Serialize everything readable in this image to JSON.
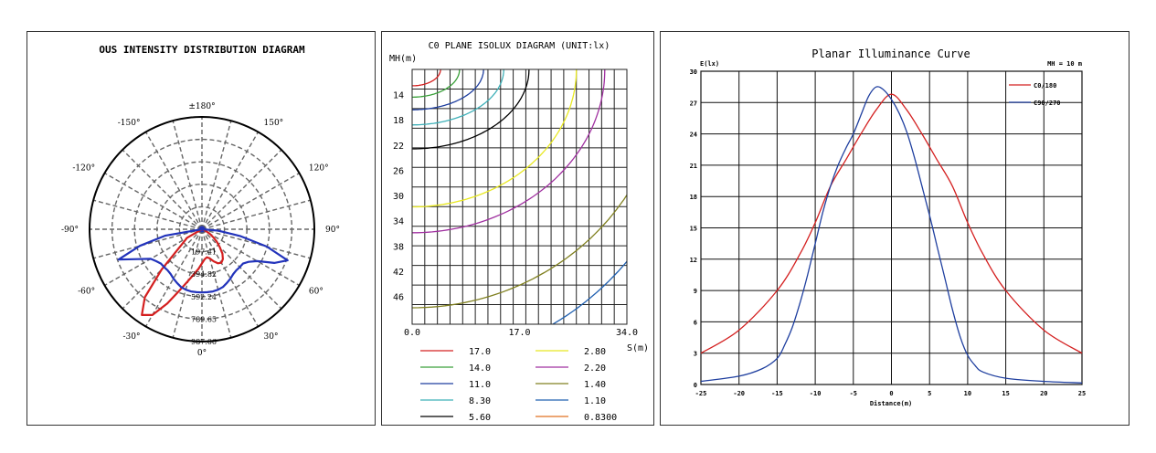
{
  "chart_data": [
    {
      "type": "polar",
      "title": "OUS INTENSITY DISTRIBUTION DIAGRAM",
      "angle_labels": [
        "±180°",
        "150°",
        "120°",
        "90°",
        "60°",
        "30°",
        "0°",
        "-30°",
        "-60°",
        "-90°",
        "-120°",
        "-150°"
      ],
      "angle_values": [
        180,
        150,
        120,
        90,
        60,
        30,
        0,
        -30,
        -60,
        -90,
        -120,
        -150
      ],
      "radial_labels": [
        "197.41",
        "394.82",
        "592.24",
        "789.65",
        "987.06"
      ],
      "radial_values": [
        197.41,
        394.82,
        592.24,
        789.65,
        987.06
      ],
      "r_max": 987.06,
      "series": [
        {
          "color": "#d42020",
          "angles": [
            -60,
            -50,
            -45,
            -40,
            -35,
            -30,
            -25,
            -20,
            -15,
            -10,
            -5,
            0,
            5,
            10,
            15,
            20,
            25,
            30,
            35,
            40,
            45,
            50,
            55,
            60,
            65,
            70
          ],
          "values": [
            150,
            280,
            500,
            780,
            920,
            870,
            720,
            570,
            470,
            400,
            350,
            300,
            265,
            250,
            265,
            300,
            330,
            340,
            320,
            280,
            220,
            170,
            120,
            80,
            40,
            15
          ]
        },
        {
          "color": "#2233bb",
          "angles": [
            -80,
            -75,
            -70,
            -65,
            -60,
            -55,
            -50,
            -45,
            -40,
            -35,
            -30,
            -25,
            -20,
            -15,
            -10,
            -5,
            0,
            5,
            10,
            15,
            20,
            25,
            30,
            35,
            40,
            45,
            50,
            55,
            60,
            65,
            70,
            75,
            80,
            85
          ],
          "values": [
            330,
            565,
            780,
            620,
            520,
            490,
            470,
            470,
            470,
            480,
            500,
            520,
            540,
            550,
            555,
            555,
            555,
            555,
            555,
            550,
            540,
            520,
            500,
            480,
            470,
            470,
            470,
            500,
            560,
            700,
            800,
            590,
            340,
            140
          ]
        }
      ]
    },
    {
      "type": "contour",
      "title": "C0 PLANE ISOLUX DIAGRAM (UNIT:lx)",
      "ylabel": "MH(m)",
      "xlabel": "S(m)",
      "x_ticks": [
        "0.0",
        "17.0",
        "34.0"
      ],
      "y_ticks": [
        "14",
        "18",
        "22",
        "26",
        "30",
        "34",
        "38",
        "42",
        "46"
      ],
      "legend": [
        {
          "value": "17.0",
          "color": "#d42020"
        },
        {
          "value": "14.0",
          "color": "#3aa03a"
        },
        {
          "value": "11.0",
          "color": "#1f3f9f"
        },
        {
          "value": "8.30",
          "color": "#3fb0b8"
        },
        {
          "value": "5.60",
          "color": "#000000"
        },
        {
          "value": "2.80",
          "color": "#e8e820"
        },
        {
          "value": "2.20",
          "color": "#a030a0"
        },
        {
          "value": "1.40",
          "color": "#808020"
        },
        {
          "value": "1.10",
          "color": "#2060b0"
        },
        {
          "value": "0.8300",
          "color": "#e07020"
        }
      ]
    },
    {
      "type": "line",
      "title": "Planar Illuminance Curve",
      "ylabel": "E(lx)",
      "xlabel": "Distance(m)",
      "note": "MH = 10 m",
      "xlim": [
        -25,
        25
      ],
      "ylim": [
        0,
        30
      ],
      "x_ticks": [
        -25,
        -20,
        -15,
        -10,
        -5,
        0,
        5,
        10,
        15,
        20,
        25
      ],
      "y_ticks": [
        0,
        3,
        6,
        9,
        12,
        15,
        18,
        21,
        24,
        27,
        30
      ],
      "series": [
        {
          "name": "C0/180",
          "color": "#d42020",
          "x": [
            -25,
            -20,
            -15,
            -12,
            -10,
            -8,
            -6,
            -4,
            -2,
            0,
            2,
            4,
            6,
            8,
            10,
            12,
            15,
            20,
            25
          ],
          "y": [
            3,
            5.2,
            9,
            12.5,
            15.5,
            19,
            21.5,
            24,
            26.3,
            27.8,
            26.3,
            24,
            21.5,
            19,
            15.5,
            12.5,
            9,
            5.2,
            3
          ]
        },
        {
          "name": "C90/270",
          "color": "#1f3f9f",
          "x": [
            -25,
            -20,
            -17,
            -15,
            -14,
            -13,
            -12,
            -11,
            -10,
            -9,
            -8,
            -7,
            -6,
            -5,
            -4,
            -3,
            -2,
            -1,
            0,
            1,
            2,
            3,
            4,
            5,
            6,
            7,
            8,
            9,
            10,
            11,
            12,
            15,
            20,
            25
          ],
          "y": [
            0.3,
            0.8,
            1.5,
            2.5,
            3.8,
            5.5,
            7.8,
            10.5,
            13.5,
            16.5,
            19,
            21,
            22.6,
            24,
            25.8,
            27.6,
            28.5,
            28.2,
            27.3,
            26,
            24.2,
            21.8,
            19,
            16.2,
            13.2,
            10.2,
            7.2,
            4.6,
            2.8,
            1.8,
            1.2,
            0.6,
            0.3,
            0.15
          ]
        }
      ]
    }
  ]
}
